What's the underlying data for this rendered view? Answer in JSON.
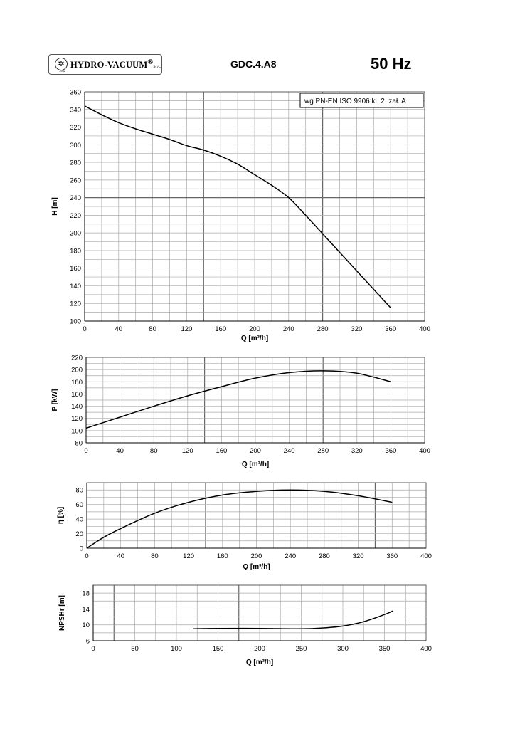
{
  "header": {
    "logo_text": "HYDRO-VACUUM",
    "logo_suffix": "S.A.",
    "logo_year": "1952",
    "model": "GDC.4.A8",
    "frequency": "50 Hz"
  },
  "chart_data": [
    {
      "type": "line",
      "id": "H",
      "title": "",
      "annotation": "wg PN-EN ISO 9906:kl. 2, zał. A",
      "xlabel": "Q  [m³/h]",
      "ylabel": "H  [m]",
      "xlim": [
        0,
        400
      ],
      "ylim": [
        100,
        360
      ],
      "xticks": [
        0,
        40,
        80,
        120,
        160,
        200,
        240,
        280,
        320,
        360,
        400
      ],
      "yticks": [
        100,
        120,
        140,
        160,
        180,
        200,
        220,
        240,
        260,
        280,
        300,
        320,
        340,
        360
      ],
      "x": [
        0,
        20,
        40,
        60,
        80,
        100,
        120,
        140,
        160,
        180,
        200,
        220,
        240,
        260,
        280,
        300,
        320,
        340,
        360
      ],
      "y": [
        344,
        334,
        325,
        318,
        312,
        306,
        299,
        294,
        287,
        278,
        266,
        254,
        240,
        220,
        199,
        178,
        157,
        136,
        115
      ],
      "grid": true
    },
    {
      "type": "line",
      "id": "P",
      "xlabel": "Q  [m³/h]",
      "ylabel": "P  [kW]",
      "xlim": [
        0,
        400
      ],
      "ylim": [
        80,
        220
      ],
      "xticks": [
        0,
        40,
        80,
        120,
        160,
        200,
        240,
        280,
        320,
        360,
        400
      ],
      "yticks": [
        80,
        100,
        120,
        140,
        160,
        180,
        200,
        220
      ],
      "x": [
        0,
        40,
        80,
        120,
        160,
        200,
        240,
        280,
        320,
        360
      ],
      "y": [
        104,
        122,
        140,
        157,
        172,
        186,
        195,
        198,
        194,
        180
      ],
      "grid": true
    },
    {
      "type": "line",
      "id": "eta",
      "xlabel": "Q  [m³/h]",
      "ylabel": "η  [%]",
      "xlim": [
        0,
        400
      ],
      "ylim": [
        0,
        90
      ],
      "xticks": [
        0,
        40,
        80,
        120,
        160,
        200,
        240,
        280,
        320,
        360,
        400
      ],
      "yticks": [
        0,
        20,
        40,
        60,
        80
      ],
      "x": [
        0,
        20,
        40,
        80,
        120,
        160,
        200,
        240,
        280,
        320,
        360
      ],
      "y": [
        0,
        15,
        27,
        48,
        63,
        73,
        78,
        80,
        78,
        72,
        63
      ],
      "grid": true
    },
    {
      "type": "line",
      "id": "NPSH",
      "xlabel": "Q  [m³/h]",
      "ylabel": "NPSHr [m]",
      "xlim": [
        0,
        400
      ],
      "ylim": [
        6,
        20
      ],
      "xticks": [
        0,
        50,
        100,
        150,
        200,
        250,
        300,
        350,
        400
      ],
      "yticks": [
        6,
        10,
        14,
        18
      ],
      "x": [
        120,
        150,
        200,
        250,
        275,
        300,
        325,
        350,
        360
      ],
      "y": [
        9.0,
        9.1,
        9.1,
        9.0,
        9.2,
        9.7,
        10.8,
        12.6,
        13.5
      ],
      "grid": true
    }
  ]
}
